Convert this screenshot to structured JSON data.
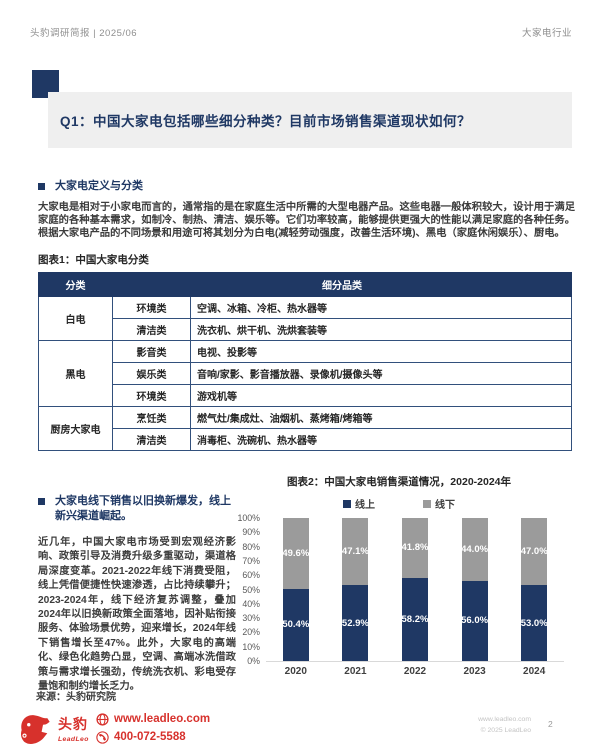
{
  "header": {
    "left": "头豹调研简报 | 2025/06",
    "right": "大家电行业"
  },
  "question": {
    "text": "Q1：中国大家电包括哪些细分种类？目前市场销售渠道现状如何？"
  },
  "definition_section": {
    "heading": "大家电定义与分类",
    "paragraph": "大家电是相对于小家电而言的，通常指的是在家庭生活中所需的大型电器产品。这些电器一般体积较大，设计用于满足家庭的各种基本需求，如制冷、制热、清洁、娱乐等。它们功率较高，能够提供更强大的性能以满足家庭的各种任务。根据大家电产品的不同场景和用途可将其划分为白电(减轻劳动强度，改善生活环境)、黑电（家庭休闲娱乐）、厨电。"
  },
  "figure1": {
    "caption": "图表1：中国大家电分类",
    "table": {
      "headers": [
        "分类",
        "细分品类"
      ],
      "groups": [
        {
          "category": "白电",
          "rows": [
            {
              "sub": "环境类",
              "items": "空调、冰箱、冷柜、热水器等"
            },
            {
              "sub": "清洁类",
              "items": "洗衣机、烘干机、洗烘套装等"
            }
          ]
        },
        {
          "category": "黑电",
          "rows": [
            {
              "sub": "影音类",
              "items": "电视、投影等"
            },
            {
              "sub": "娱乐类",
              "items": "音响/家影、影音播放器、录像机/摄像头等"
            },
            {
              "sub": "环境类",
              "items": "游戏机等"
            }
          ]
        },
        {
          "category": "厨房大家电",
          "rows": [
            {
              "sub": "烹饪类",
              "items": "燃气灶/集成灶、油烟机、蒸烤箱/烤箱等"
            },
            {
              "sub": "清洁类",
              "items": "消毒柜、洗碗机、热水器等"
            }
          ]
        }
      ]
    }
  },
  "channel_section": {
    "heading": "大家电线下销售以旧换新爆发，线上新兴渠道崛起。",
    "paragraph": "近几年，中国大家电市场受到宏观经济影响、政策引导及消费升级多重驱动，渠道格局深度变革。2021-2022年线下消费受阻，线上凭借便捷性快速渗透，占比持续攀升；2023-2024年，线下经济复苏调整，叠加2024年以旧换新政策全面落地，因补贴衔接服务、体验场景优势，迎来增长，2024年线下销售增长至47%。此外，大家电的高端化、绿色化趋势凸显，空调、高端冰洗借政策与需求增长强劲，传统洗衣机、彩电受存量饱和制约增长乏力。",
    "source": "来源：头豹研究院"
  },
  "chart_data": {
    "type": "bar",
    "stacked": true,
    "title": "图表2：中国大家电销售渠道情况，2020-2024年",
    "categories": [
      "2020",
      "2021",
      "2022",
      "2023",
      "2024"
    ],
    "series": [
      {
        "name": "线上",
        "color": "#1F3864",
        "values": [
          50.4,
          52.9,
          58.2,
          56.0,
          53.0
        ]
      },
      {
        "name": "线下",
        "color": "#9B9B9B",
        "values": [
          49.6,
          47.1,
          41.8,
          44.0,
          47.0
        ]
      }
    ],
    "value_suffix": "%",
    "ylim": [
      0,
      100
    ],
    "y_ticks": [
      "100%",
      "90%",
      "80%",
      "70%",
      "60%",
      "50%",
      "40%",
      "30%",
      "20%",
      "10%",
      "0%"
    ],
    "legend_position": "top",
    "grid": false,
    "xlabel": "",
    "ylabel": ""
  },
  "footer": {
    "brand_cn": "头豹",
    "brand_en": "LeadLeo",
    "website": "www.leadleo.com",
    "phone": "400-072-5588",
    "right_site": "www.leadleo.com",
    "copyright": "© 2025 LeadLeo",
    "page_number": "2"
  },
  "colors": {
    "navy": "#1F3864",
    "bar_gray": "#9B9B9B",
    "brand_red": "#D7312C",
    "question_box_gray": "#EFEFEF"
  }
}
